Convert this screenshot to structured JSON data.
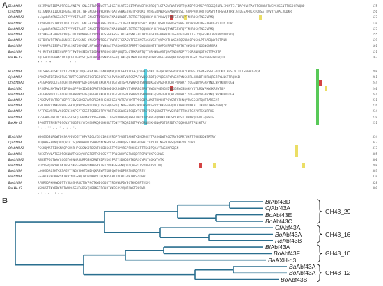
{
  "figure": {
    "panel_a_letter": "A",
    "panel_b_letter": "B"
  },
  "alignment": {
    "blocks": [
      {
        "rows": [
          {
            "name": "BlAbf43A",
            "seq": "KRIRPNVRIDPAPTPGKAVNIPW-GNLGFTWPDAWGTTADGSFRLVTEGGITMRGWEFHSPRDQTLGFAGWPWATWGRTQGNDPTSPRGPPREGGQRLRLIPGNTELTDAPRVHTAYFTGHRRSTWEPSVGGNTTHGDGPVQRD",
            "num": "175"
          },
          {
            "name": "CjAbf43A",
            "seq": "KKIGNNAPIIDQRLPGDAIRTDHITW-GNLGFTWPDAWGTGATSGWKEVRETYRPGKITQSREGRPWDRGRANWMPSSLTGGMPAQCARTTGASYTNTFGGKKYRWIGTDEGAPVLRTGNSATTNVRYAAALVDDKR",
            "num": "156"
          },
          {
            "name": "CfAbf43A1",
            "seq": "sLkpdWRfPNGGATGTPYVYITVAHT-GNLGFTWPDAWGTKADNWWDTLTETRETTQQRNAYHKFPHWVQTYNTGRYPQYTMHRDGQTNGSVRMQ",
            "num": "137"
          },
          {
            "name": "BoAbf43C",
            "seq": "TPVAGNKQSTPYPYTDPTVIVDLTGNLGFTYWPDAWGTRADGGFYLVSTNTRQYDGSPYTWQAVTQSPTDRRDGVYRRGTHVSRPGMTNSGYHRDGVSTTRTGDR",
            "num": "130"
          },
          {
            "name": "BoAbf43A2",
            "seq": "sLkpdWRfPNGGATGTPYVYITVAHT-GNLGFTWPDAWGTKADNWWDTLTETRETTQQRNAYHKFPHWVQTYNTGRYPQYTMHRDGQTNGSVRMQ",
            "num": "137"
          },
          {
            "name": "BoAbf43A",
            "seq": "IRYAKSGN-AARGVYVQATDTTWPNAW-GTYYYAEGSSGHFVGGTRTGNGVNTEFDTRVFAGKRDAPAWHYGTSSDGPTGHRTTGTVQSRFKGLPPAPNYDHGVDQ",
            "num": "155"
          },
          {
            "name": "BoAbf43A",
            "seq": "KKTDHRVPFTNRAQLNIEIIVHGGNS-YNLSYPWPDGATHWRTGTGSAGWTFGSGNSTAGAVSHTQVPKYTHWKGKSQSWRGQPNGQLPTHAEQWYRGTPNN",
            "num": "139"
          },
          {
            "name": "BoAbf43A",
            "seq": "IPPKAFRGISSPASTPALSKTDHPGNTLNPYWGTNVNDASTARKQASGRTRRPTYGWQRNGHTSYHAPGYRRGTPMNTKTGWGHDSVQGGNGNRSRK",
            "num": "161"
          },
          {
            "name": "BoAbf43A",
            "seq": "PG-RYTNFISEEGVPPTFTPVTGGSEGYTIGDAWFPGRGSGSPQHQTGLGTRKRHRTQTTGRHNWAASTQNATNGGRDPTVSGRRNWQGTHGTTPKFTP",
            "num": "151"
          },
          {
            "name": "BaAXH-d3",
            "seq": "TQLFHDDTHPWAYLMTQKGLNGNVSCQSGGARGGQVNNSDGSPQTHKGQWTNRTRHGDQSRDWVSNGEGHRRQATGRSQKPRTGSRTYSRTRHGDWTRQTN",
            "num": "163"
          }
        ],
        "consensus": "           *                    * :*   *:        .              .      . :.    *:           :            "
      },
      {
        "rows": [
          {
            "name": "BlAbf43A",
            "seq": "DPLSWVGPLSKCLDYIFVENQVIWQEGRRATPETDARNQNRQTRKGFYRVDEFQTSPAIGSKTLNAQWDWQVGRDFSGAYLWGPGTRGRASPSGTGGQCKPTRHSLWTTLTSHPADGSQA",
            "num": "298"
          },
          {
            "name": "CjAbf43A",
            "seq": "DPDGPWTDPIAKDTLGFMWTPGSHPVSTGGFDGPQPGTGGPVRDGKTVNRGSPATYVQGSRDTQGVQDGARYPWGSRYNGGFRLKHRDTHDRWQRSRPYLNGTTRQRGD",
            "num": "261"
          },
          {
            "name": "CfAbf43A1",
            "seq": "SPEGPRWQGLTEGSGHTWGPWHWVGDFQAPGHTAKGRPEFVGTSNTGPRAVRVRGYSKWHDKGQSPGDHRYQHTPGMWRYTSGGGNHYPGRRYNQLWRYKHWTGGN",
            "num": "244"
          },
          {
            "name": "BoAbf43C",
            "seq": "SPSGPWLNKTAVDPIFQDAQPFGQIIWGEGPATNRGNGQDGKRSGDPYVTYRNRRGSPHTHWGVPGEHGYDVDGGRWQSRGKHYDTRRGVPKWSKRNWTGP",
            "num": "240"
          },
          {
            "name": "BoAbf43A2",
            "seq": "SPEGPRWQGLTEGSGHTWGPWHWVGDFQAPGHTAKGRPEFVGTSNTGPRAVRVRGYSKWHDKGQSPGDHRYQHTPGMWRYTSGGGNHYPGRRYNQLWRYKHWTGGN",
            "num": "244"
          },
          {
            "name": "BoAbf43A",
            "seq": "SPKGPVTGWTRDTVDPTFIDVGKDSGRWRGPGDNSHGDKFGGVPRTSRYYKTTPPGQDYAWKTTHPKHTPGYSRTGTHNQVRWSGSHTQNTTARSGYP",
            "num": "231"
          },
          {
            "name": "BoAbf43A",
            "seq": "KSHIVPVTYNKPAWNESGKVQYWPYSPRDLDAQTTVTGQGGRKQTNDSFHRDGDWYLHSPGSRPVYKKPGHHQDTAYRAKPVNKHTTTKNDGTWRSSHRQYR",
            "num": "226"
          },
          {
            "name": "BoAbf43A",
            "seq": "APTFKGWSFRLVGQSEWIQKPSYTSSSTPQDDGQTRYYRRTNGKKWHSNPGQEYTGTRSYDSAQKRGTTPKVSHRDRTTRGQTGRYWTSKNRPHG",
            "num": "234"
          },
          {
            "name": "BoAbf43A",
            "seq": "RFSEWNGTWLDTYAGEGSFSKQLGPDARVYYGSRWKFTTGGRKDDHSNQPWGTNRGYTQSHRGYQPRKTRKGSYTWGSTTHHNRQKGDTGQRVTS",
            "num": "239"
          },
          {
            "name": "BaAXH-d3",
            "seq": "SPGGTTTRNSYPDSGVATNGGTGSYYDHSNRKQPGNKGRTTDNYVTKQRDSGTPWYGRNWSKHGNQPGTGRSDTKTQQHGRNRTPNSKTRY",
            "num": "231"
          }
        ],
        "consensus": "                    * :  . **      .     .        *      .            :         .    *.                "
      },
      {
        "rows": [
          {
            "name": "BlAbf43A",
            "seq": "NGGGSDSLRQWTDHSAPPDVDGYTHPYRDGLYGSGIAGSVRGPTPVSTGANKTKDHDRGEYTRHSGDWTAGDTRYPQRRTWKPTTGHSGQNTRTRY",
            "num": "354"
          },
          {
            "name": "CjAbf43A",
            "seq": "MTQRPFSPNNQDDSQPTCTSQPWDWANTYSRPPSNDNGRRSTGRDKQRSTTKPGPQRHTYQYTRNTNSRRTRSQPGKGYWTYDRK",
            "num": "343"
          },
          {
            "name": "CfAbf43A1",
            "seq": "PGSKQMATTIHKMAQPGWSRHPGKGNKDTDSATHGEDKGRTPTKPYRGPRNKHSGTTTKGDPQYAYTWGKNRSQGN",
            "num": "317"
          },
          {
            "name": "BoAbf43C",
            "seq": "RDEGTYWLATGGPPGKNRWTKNSQYHRGTDRTKPGGSYTTPRNSRHYRGTWHQDTRSPNYQKPGGDWS",
            "num": "305"
          },
          {
            "name": "BoAbf43A2",
            "seq": "AMHSTPGGTWAYLGGGTQPNNRSRRPGSHDRNTKDRYKGSPRTYSDHQGNTKQRSGYPRTAGKWTQTK",
            "num": "300"
          },
          {
            "name": "BoAbf43A",
            "seq": "PTRYGPQIWYHTGNTPSKSKRGSPWVRDNKHGYRTRTYPGKHSGGNQDTGQPSRTTSYHGQYRKTNQ",
            "num": "298"
          },
          {
            "name": "BoAbf43A",
            "seq": "LAGHSDRQSHTKRTAGVTYNGYSDKTGNDHQKRRWPTKHPQWTGGDPSRTNGRQTRSY",
            "num": "303"
          },
          {
            "name": "BoAbf43A",
            "seq": "GSARTKPPGKHVSNTRHYNDGSWQTRDPGKRYTTHQNNSGPTKRKRTGDWTRYSYQRP",
            "num": "310"
          },
          {
            "name": "BoAbf43A",
            "seq": "RFHRSQPKNKWQDTTYSRGSHRRKTSYPNGTKWDGGQRTTRGHWRPDYSGTKHQNRTYKPS",
            "num": "328"
          },
          {
            "name": "BaAXH-d3",
            "seq": "NSRHGTTKYPRKNQTWDRGSSHTGPGKQYRRNSTDGHRTWKPGRSYQNTQKGTRHSWD",
            "num": "309"
          }
        ],
        "consensus": "        .                  :   .         .          .       :          .             .     "
      }
    ]
  },
  "tree": {
    "leaves": [
      {
        "italic": "Bl",
        "rest": "Abf43D"
      },
      {
        "italic": "Cj",
        "rest": "Abf43A"
      },
      {
        "italic": "Bo",
        "rest": "Abf43E"
      },
      {
        "italic": "Bo",
        "rest": "Abf43C"
      },
      {
        "italic": "Cf",
        "rest": "Abf43A"
      },
      {
        "italic": "Bo",
        "rest": "Abf43A"
      },
      {
        "italic": "Rc",
        "rest": "Abf43B"
      },
      {
        "italic": "Bl",
        "rest": "Abf43A"
      },
      {
        "italic": "Bo",
        "rest": "Abf43F"
      },
      {
        "italic": "Ba",
        "rest": "AXH-d3"
      },
      {
        "italic": "Ba",
        "rest": "Abf43A"
      },
      {
        "italic": "Bo",
        "rest": "Abf43A"
      },
      {
        "italic": "Bo",
        "rest": "Abf43B"
      }
    ],
    "clades": [
      {
        "label": "GH43_29"
      },
      {
        "label": "GH43_16"
      },
      {
        "label": "GH43_10"
      },
      {
        "label": "GH43_12"
      }
    ],
    "colors": {
      "branch": "#2a6f8f",
      "purple": "#b44fc7",
      "cyan": "#3ec3d6",
      "green": "#3bbf3b",
      "red": "#cc2222",
      "yellow": "#e8d84a"
    }
  }
}
